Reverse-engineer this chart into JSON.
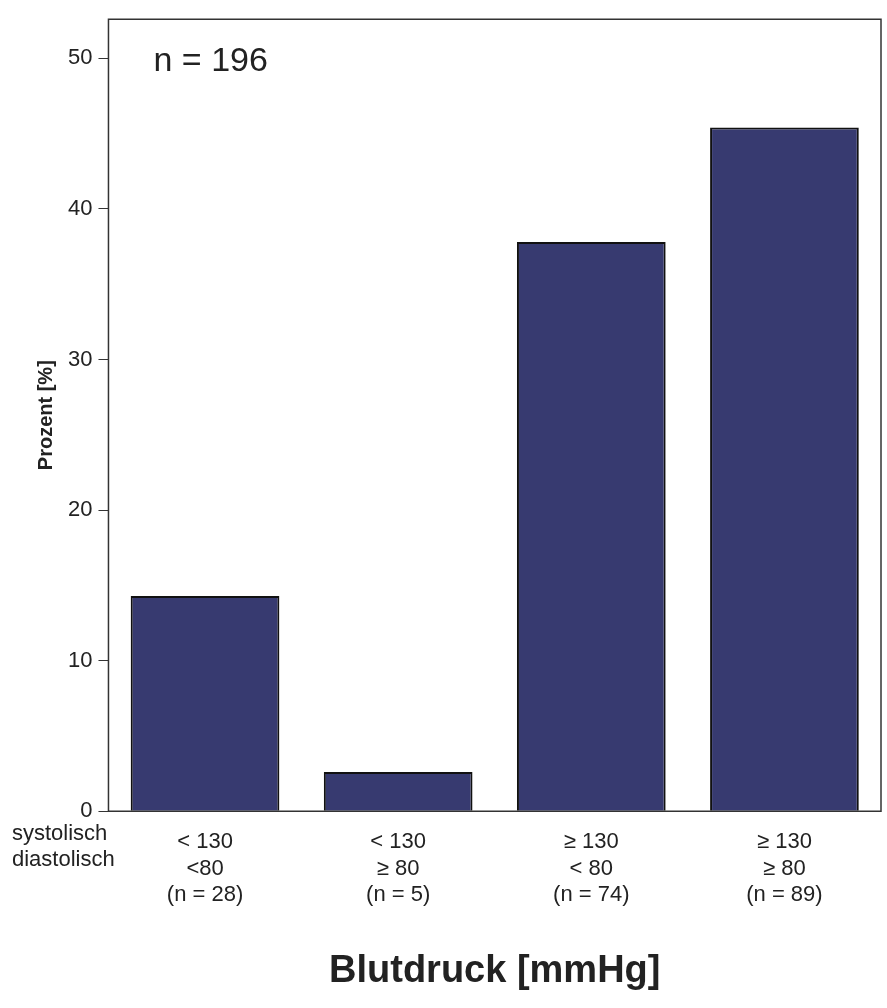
{
  "chart_data": {
    "type": "bar",
    "xlabel": "Blutdruck [mmHg]",
    "ylabel": "Prozent [%]",
    "categories": [
      "< 130\n<80\n(n = 28)",
      "< 130\n≥ 80\n(n = 5)",
      "≥ 130\n< 80\n(n = 74)",
      "≥ 130\n≥ 80\n(n = 89)"
    ],
    "values": [
      14.3,
      2.6,
      37.8,
      45.4
    ],
    "color": "#373a70",
    "ylim": [
      0,
      52.6
    ],
    "yticks": [
      0,
      10,
      20,
      30,
      40,
      50
    ],
    "grid": false,
    "legend": false,
    "annotations": [
      "n = 196",
      "systolisch",
      "diastolisch"
    ]
  }
}
